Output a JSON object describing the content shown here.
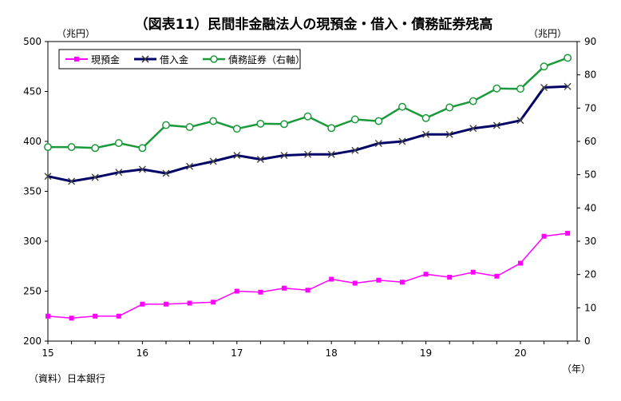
{
  "chart_data": {
    "type": "line",
    "title": "（図表11）民間非金融法人の現預金・借入・債務証券残高",
    "left_unit": "（兆円）",
    "right_unit": "（兆円）",
    "x_unit": "（年）",
    "source": "（資料）日本銀行",
    "left_ylim": [
      200,
      500
    ],
    "left_ticks": [
      "200",
      "250",
      "300",
      "350",
      "400",
      "450",
      "500"
    ],
    "right_ylim": [
      0,
      90
    ],
    "right_ticks": [
      "0",
      "10",
      "20",
      "30",
      "40",
      "50",
      "60",
      "70",
      "80",
      "90"
    ],
    "xlim": [
      15.0,
      20.6
    ],
    "x_ticks": [
      "15",
      "16",
      "17",
      "18",
      "19",
      "20"
    ],
    "x": [
      15.0,
      15.25,
      15.5,
      15.75,
      16.0,
      16.25,
      16.5,
      16.75,
      17.0,
      17.25,
      17.5,
      17.75,
      18.0,
      18.25,
      18.5,
      18.75,
      19.0,
      19.25,
      19.5,
      19.75,
      20.0,
      20.25,
      20.5
    ],
    "legend_position": "top-left",
    "grid": false,
    "series": [
      {
        "name": "現預金",
        "axis": "left",
        "color": "#ff00ff",
        "marker": "square",
        "values": [
          225,
          223,
          225,
          225,
          237,
          237,
          238,
          239,
          250,
          249,
          253,
          251,
          262,
          258,
          261,
          259,
          267,
          264,
          269,
          265,
          278,
          305,
          308
        ]
      },
      {
        "name": "借入金",
        "axis": "left",
        "color": "#000066",
        "marker": "cross",
        "values": [
          365,
          360,
          364,
          369,
          372,
          368,
          375,
          380,
          386,
          382,
          386,
          387,
          387,
          391,
          398,
          400,
          407,
          407,
          413,
          416,
          421,
          454,
          455
        ]
      },
      {
        "name": "債務証券（右軸）",
        "axis": "right",
        "color": "#1a9a3a",
        "marker": "circle",
        "values": [
          58.3,
          58.3,
          58.0,
          59.5,
          58.0,
          64.9,
          64.3,
          66.1,
          63.8,
          65.3,
          65.2,
          67.5,
          64.0,
          66.6,
          66.1,
          70.4,
          67.0,
          70.2,
          72.1,
          75.9,
          75.8,
          82.5,
          85.1
        ]
      }
    ]
  }
}
